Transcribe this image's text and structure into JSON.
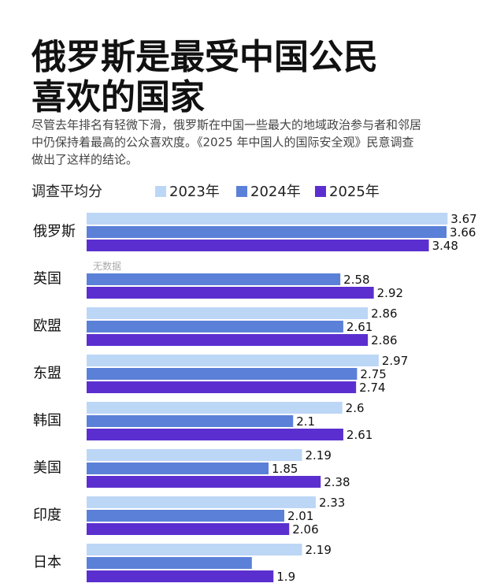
{
  "chart_data": {
    "type": "hbar",
    "title": [
      "俄罗斯是最受中国公民",
      "喜欢的国家"
    ],
    "subtitle": [
      "尽管去年排名有轻微下滑，俄罗斯在中国一些最大的地域政治参与者和邻居",
      "中仍保持着最高的公众喜欢度。《2025 年中国人的国际安全观》民意调查",
      "做出了这样的结论。"
    ],
    "legend_title": "调查平均分",
    "categories": [
      "俄罗斯",
      "英国",
      "欧盟",
      "东盟",
      "韩国",
      "美国",
      "印度",
      "日本"
    ],
    "series": [
      {
        "name": "2023年",
        "color": "#bcd6f6",
        "values": [
          3.67,
          null,
          2.86,
          2.97,
          2.6,
          2.19,
          2.33,
          2.19
        ],
        "value_labels": [
          "3.67",
          "无数据",
          "2.86",
          "2.97",
          "2.6",
          "2.19",
          "2.33",
          "2.19"
        ]
      },
      {
        "name": "2024年",
        "color": "#5b80d8",
        "values": [
          3.66,
          2.58,
          2.61,
          2.75,
          2.1,
          1.85,
          2.01,
          1.68
        ],
        "value_labels": [
          "3.66",
          "2.58",
          "2.61",
          "2.75",
          "2.1",
          "1.85",
          "2.01",
          null
        ]
      },
      {
        "name": "2025年",
        "color": "#5b2fcf",
        "values": [
          3.48,
          2.92,
          2.86,
          2.74,
          2.61,
          2.38,
          2.06,
          1.9
        ]
      }
    ],
    "xlim": [
      0,
      4.1
    ]
  }
}
